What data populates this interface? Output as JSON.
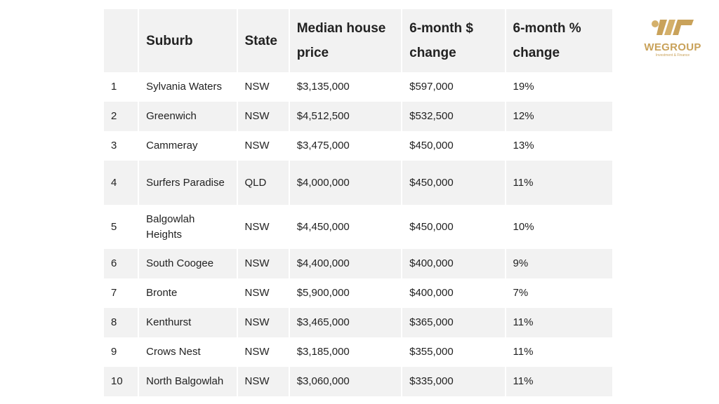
{
  "table": {
    "header": [
      "",
      "Suburb",
      "State",
      "Median house price",
      "6-month $ change",
      "6-month % change"
    ],
    "rows": [
      [
        "1",
        "Sylvania Waters",
        "NSW",
        "$3,135,000",
        "$597,000",
        "19%"
      ],
      [
        "2",
        "Greenwich",
        "NSW",
        "$4,512,500",
        "$532,500",
        "12%"
      ],
      [
        "3",
        "Cammeray",
        "NSW",
        "$3,475,000",
        "$450,000",
        "13%"
      ],
      [
        "4",
        "Surfers Paradise",
        "QLD",
        "$4,000,000",
        "$450,000",
        "11%"
      ],
      [
        "5",
        "Balgowlah Heights",
        "NSW",
        "$4,450,000",
        "$450,000",
        "10%"
      ],
      [
        "6",
        "South Coogee",
        "NSW",
        "$4,400,000",
        "$400,000",
        "9%"
      ],
      [
        "7",
        "Bronte",
        "NSW",
        "$5,900,000",
        "$400,000",
        "7%"
      ],
      [
        "8",
        "Kenthurst",
        "NSW",
        "$3,465,000",
        "$365,000",
        "11%"
      ],
      [
        "9",
        "Crows Nest",
        "NSW",
        "$3,185,000",
        "$355,000",
        "11%"
      ],
      [
        "10",
        "North Balgowlah",
        "NSW",
        "$3,060,000",
        "$335,000",
        "11%"
      ]
    ]
  },
  "logo": {
    "name": "WEGROUP",
    "tagline": "Investment & Finance"
  }
}
